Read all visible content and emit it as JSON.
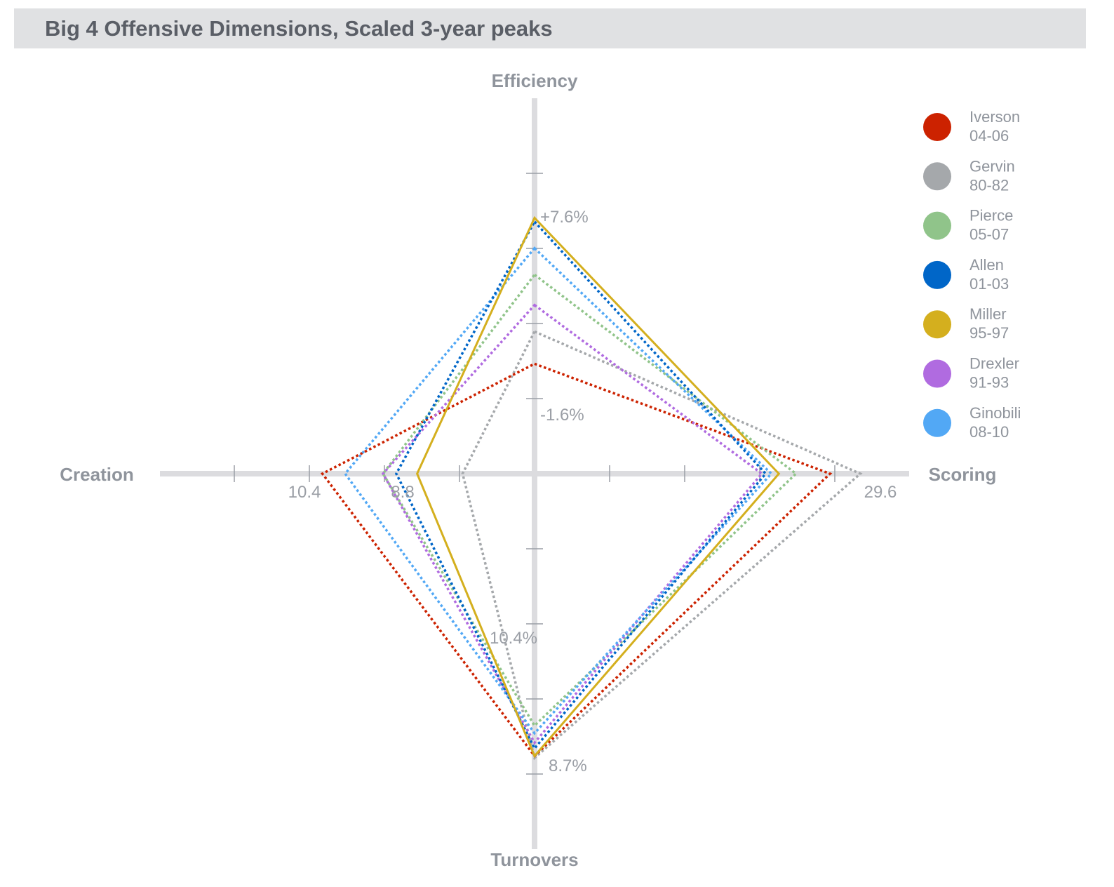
{
  "title": "Big 4 Offensive Dimensions, Scaled 3-year peaks",
  "chart_data": {
    "type": "radar",
    "axes": [
      {
        "key": "efficiency",
        "label": "Efficiency"
      },
      {
        "key": "scoring",
        "label": "Scoring"
      },
      {
        "key": "turnovers",
        "label": "Turnovers"
      },
      {
        "key": "creation",
        "label": "Creation"
      }
    ],
    "tick_labels": {
      "efficiency_outer": "+7.6%",
      "efficiency_inner": "-1.6%",
      "scoring": "29.6",
      "turnovers_inner": "10.4%",
      "turnovers_outer": "8.7%",
      "creation_outer": "10.4",
      "creation_inner": "8.8"
    },
    "series": [
      {
        "name": "Iverson",
        "years": "04-06",
        "color": "#cc2200",
        "style": "dotted",
        "efficiency": 0.29,
        "scoring": 0.78,
        "turnovers": 0.745,
        "creation": 0.56
      },
      {
        "name": "Gervin",
        "years": "80-82",
        "color": "#a5a8ab",
        "style": "dotted",
        "efficiency": 0.375,
        "scoring": 0.86,
        "turnovers": 0.75,
        "creation": 0.19
      },
      {
        "name": "Pierce",
        "years": "05-07",
        "color": "#90c48a",
        "style": "dotted",
        "efficiency": 0.525,
        "scoring": 0.69,
        "turnovers": 0.665,
        "creation": 0.4
      },
      {
        "name": "Allen",
        "years": "01-03",
        "color": "#0066c8",
        "style": "dotted",
        "efficiency": 0.665,
        "scoring": 0.61,
        "turnovers": 0.725,
        "creation": 0.365
      },
      {
        "name": "Miller",
        "years": "95-97",
        "color": "#d4af1e",
        "style": "solid",
        "efficiency": 0.675,
        "scoring": 0.645,
        "turnovers": 0.745,
        "creation": 0.31
      },
      {
        "name": "Drexler",
        "years": "91-93",
        "color": "#b06be0",
        "style": "dotted",
        "efficiency": 0.445,
        "scoring": 0.6,
        "turnovers": 0.71,
        "creation": 0.4
      },
      {
        "name": "Ginobili",
        "years": "08-10",
        "color": "#52a8f5",
        "style": "dotted",
        "efficiency": 0.595,
        "scoring": 0.625,
        "turnovers": 0.685,
        "creation": 0.5
      }
    ]
  }
}
